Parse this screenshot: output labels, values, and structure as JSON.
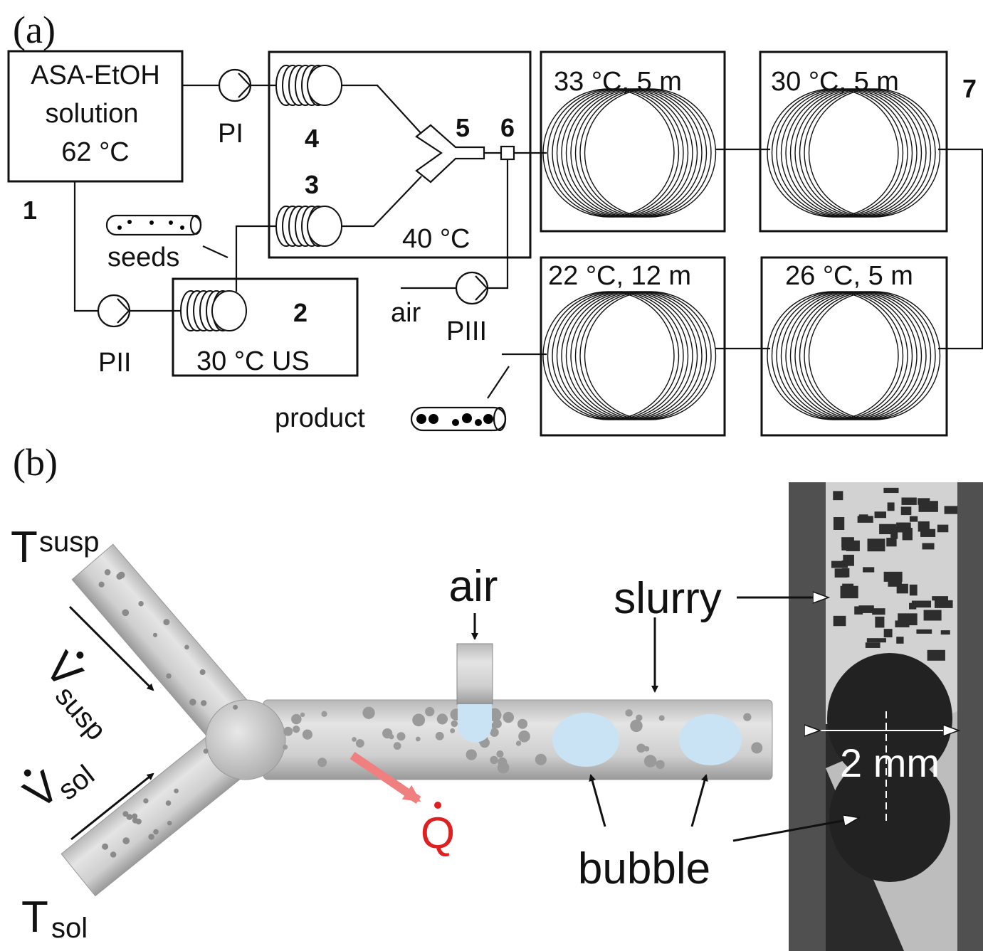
{
  "panel_a": {
    "label": "(a)",
    "feed": {
      "lines": [
        "ASA-EtOH",
        "solution",
        "62 °C"
      ],
      "number": "1"
    },
    "pumps": [
      "PI",
      "PII",
      "PIII"
    ],
    "numbers": [
      "2",
      "3",
      "4",
      "5",
      "6",
      "7"
    ],
    "seeds": "seeds",
    "product": "product",
    "air": "air",
    "thermostat": "40 °C",
    "ultrasound_bath": "30 °C US",
    "coils": [
      "33 °C, 5 m",
      "30 °C, 5 m",
      "22 °C, 12 m",
      "26 °C, 5 m"
    ]
  },
  "panel_b": {
    "label": "(b)",
    "t_susp": {
      "symbol": "T",
      "subscript": "susp"
    },
    "t_sol": {
      "symbol": "T",
      "subscript": "sol"
    },
    "v_susp": {
      "symbol": "V",
      "subscript": "susp"
    },
    "v_sol": {
      "symbol": "V",
      "subscript": "sol"
    },
    "air": "air",
    "slurry": "slurry",
    "bubble": "bubble",
    "heat": "Q",
    "scale": "2 mm"
  }
}
